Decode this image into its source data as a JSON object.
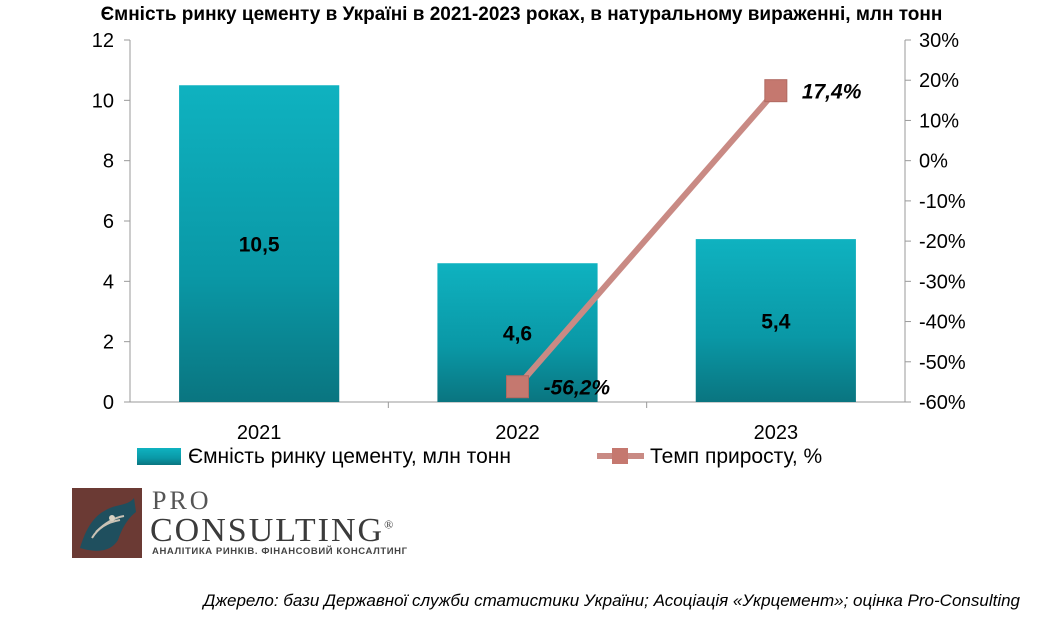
{
  "chart_data": {
    "type": "bar",
    "title": "Ємність ринку цементу в Україні в 2021-2023 роках, в натуральному вираженні, млн тонн",
    "categories": [
      "2021",
      "2022",
      "2023"
    ],
    "series": [
      {
        "name": "Ємність ринку цементу, млн тонн",
        "type": "bar",
        "axis": "left",
        "values": [
          10.5,
          4.6,
          5.4
        ],
        "labels": [
          "10,5",
          "4,6",
          "5,4"
        ],
        "color": "#0a9aa8"
      },
      {
        "name": "Темп приросту, %",
        "type": "line",
        "axis": "right",
        "values": [
          null,
          -56.2,
          17.4
        ],
        "labels": [
          "",
          "-56,2%",
          "17,4%"
        ],
        "color": "#c98a84"
      }
    ],
    "yleft": {
      "min": 0,
      "max": 12,
      "ticks": [
        "0",
        "2",
        "4",
        "6",
        "8",
        "10",
        "12"
      ]
    },
    "yright": {
      "min": -60,
      "max": 30,
      "ticks": [
        "-60%",
        "-50%",
        "-40%",
        "-30%",
        "-20%",
        "-10%",
        "0%",
        "10%",
        "20%",
        "30%"
      ]
    },
    "grid": false,
    "legend": "bottom"
  },
  "logo": {
    "line1": "PRO",
    "line2": "CONSULTING",
    "registered": "®",
    "tagline": "АНАЛІТИКА РИНКІВ. ФІНАНСОВИЙ КОНСАЛТИНГ"
  },
  "source": "Джерело: бази Державної служби статистики України; Асоціація «Укрцемент»; оцінка Pro-Consulting"
}
